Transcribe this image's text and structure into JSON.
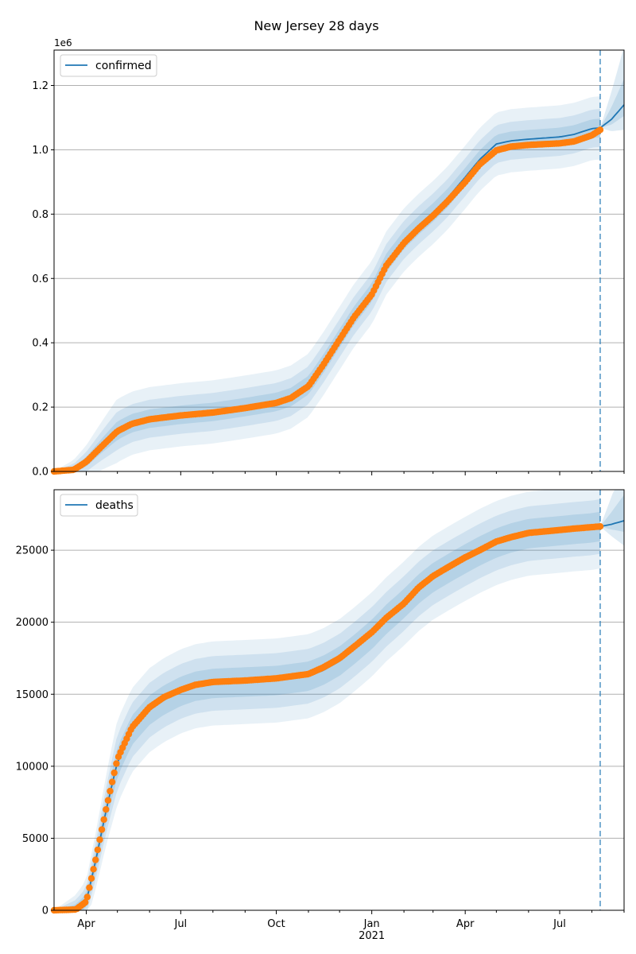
{
  "figure": {
    "title": "New Jersey 28 days",
    "colors": {
      "model": "#1f77b4",
      "observed": "#ff7f0e",
      "band": "#1f77b4",
      "grid": "#b0b0b0"
    }
  },
  "chart_data": [
    {
      "type": "line",
      "title": "",
      "xlabel": "",
      "ylabel": "",
      "offset_label": "1e6",
      "legend": {
        "entries": [
          "confirmed"
        ],
        "placement": "top-left"
      },
      "grid": "horizontal",
      "xlim": [
        "2020-03-01",
        "2021-09-01"
      ],
      "ylim": [
        0,
        1.31
      ],
      "y_ticks": [
        0.0,
        0.2,
        0.4,
        0.6,
        0.8,
        1.0,
        1.2
      ],
      "y_tick_labels": [
        "0.0",
        "0.2",
        "0.4",
        "0.6",
        "0.8",
        "1.0",
        "1.2"
      ],
      "forecast_start": "2021-08-09",
      "observed": {
        "x": [
          "2020-03-01",
          "2020-03-20",
          "2020-04-01",
          "2020-04-15",
          "2020-05-01",
          "2020-05-15",
          "2020-06-01",
          "2020-07-01",
          "2020-08-01",
          "2020-09-01",
          "2020-10-01",
          "2020-10-15",
          "2020-11-01",
          "2020-11-15",
          "2020-12-01",
          "2020-12-15",
          "2021-01-01",
          "2021-01-15",
          "2021-02-01",
          "2021-02-15",
          "2021-03-01",
          "2021-03-15",
          "2021-04-01",
          "2021-04-15",
          "2021-05-01",
          "2021-05-15",
          "2021-06-01",
          "2021-07-01",
          "2021-07-15",
          "2021-08-01",
          "2021-08-09"
        ],
        "y": [
          0.0,
          0.005,
          0.03,
          0.075,
          0.125,
          0.148,
          0.162,
          0.174,
          0.183,
          0.197,
          0.213,
          0.228,
          0.265,
          0.33,
          0.41,
          0.48,
          0.55,
          0.64,
          0.71,
          0.755,
          0.795,
          0.84,
          0.9,
          0.955,
          0.998,
          1.01,
          1.015,
          1.02,
          1.026,
          1.045,
          1.062
        ]
      },
      "model": {
        "x": [
          "2020-03-01",
          "2020-03-20",
          "2020-04-01",
          "2020-04-15",
          "2020-05-01",
          "2020-05-15",
          "2020-06-01",
          "2020-07-01",
          "2020-08-01",
          "2020-09-01",
          "2020-10-01",
          "2020-10-15",
          "2020-11-01",
          "2020-11-15",
          "2020-12-01",
          "2020-12-15",
          "2021-01-01",
          "2021-01-15",
          "2021-02-01",
          "2021-02-15",
          "2021-03-01",
          "2021-03-15",
          "2021-04-01",
          "2021-04-15",
          "2021-05-01",
          "2021-05-15",
          "2021-06-01",
          "2021-07-01",
          "2021-07-15",
          "2021-08-01",
          "2021-08-09",
          "2021-08-20",
          "2021-09-01"
        ],
        "y": [
          0.0,
          0.005,
          0.03,
          0.077,
          0.127,
          0.15,
          0.164,
          0.176,
          0.185,
          0.2,
          0.216,
          0.231,
          0.268,
          0.333,
          0.414,
          0.485,
          0.556,
          0.648,
          0.72,
          0.765,
          0.805,
          0.85,
          0.915,
          0.97,
          1.018,
          1.028,
          1.033,
          1.04,
          1.048,
          1.066,
          1.068,
          1.095,
          1.14
        ]
      }
    },
    {
      "type": "line",
      "title": "",
      "xlabel": "",
      "ylabel": "",
      "legend": {
        "entries": [
          "deaths"
        ],
        "placement": "top-left"
      },
      "grid": "horizontal",
      "xlim": [
        "2020-03-01",
        "2021-09-01"
      ],
      "ylim": [
        0,
        29200
      ],
      "y_ticks": [
        0,
        5000,
        10000,
        15000,
        20000,
        25000
      ],
      "y_tick_labels": [
        "0",
        "5000",
        "10000",
        "15000",
        "20000",
        "25000"
      ],
      "x_tick_labels": [
        "Apr",
        "Jul",
        "Oct",
        "Jan\n2021",
        "Apr",
        "Jul"
      ],
      "forecast_start": "2021-08-09",
      "observed": {
        "x": [
          "2020-03-01",
          "2020-03-22",
          "2020-04-01",
          "2020-04-10",
          "2020-04-20",
          "2020-05-01",
          "2020-05-15",
          "2020-06-01",
          "2020-06-15",
          "2020-07-01",
          "2020-07-15",
          "2020-08-01",
          "2020-09-01",
          "2020-10-01",
          "2020-11-01",
          "2020-11-15",
          "2020-12-01",
          "2020-12-15",
          "2021-01-01",
          "2021-01-15",
          "2021-02-01",
          "2021-02-15",
          "2021-03-01",
          "2021-03-15",
          "2021-04-01",
          "2021-04-15",
          "2021-05-01",
          "2021-05-15",
          "2021-06-01",
          "2021-07-01",
          "2021-07-15",
          "2021-08-01",
          "2021-08-09"
        ],
        "y": [
          0,
          50,
          600,
          3500,
          7000,
          10500,
          12700,
          14100,
          14800,
          15300,
          15650,
          15850,
          15950,
          16100,
          16400,
          16850,
          17500,
          18300,
          19300,
          20300,
          21300,
          22400,
          23200,
          23800,
          24500,
          25000,
          25600,
          25900,
          26200,
          26400,
          26500,
          26600,
          26650
        ]
      },
      "model": {
        "x": [
          "2020-03-01",
          "2020-03-22",
          "2020-04-01",
          "2020-04-10",
          "2020-04-20",
          "2020-05-01",
          "2020-05-15",
          "2020-06-01",
          "2020-06-15",
          "2020-07-01",
          "2020-07-15",
          "2020-08-01",
          "2020-09-01",
          "2020-10-01",
          "2020-11-01",
          "2020-11-15",
          "2020-12-01",
          "2020-12-15",
          "2021-01-01",
          "2021-01-15",
          "2021-02-01",
          "2021-02-15",
          "2021-03-01",
          "2021-03-15",
          "2021-04-01",
          "2021-04-15",
          "2021-05-01",
          "2021-05-15",
          "2021-06-01",
          "2021-07-01",
          "2021-07-15",
          "2021-08-01",
          "2021-08-09",
          "2021-08-20",
          "2021-09-01"
        ],
        "y": [
          0,
          50,
          600,
          3400,
          6900,
          10300,
          12500,
          13900,
          14600,
          15200,
          15550,
          15750,
          15850,
          15950,
          16250,
          16650,
          17300,
          18100,
          19150,
          20200,
          21300,
          22300,
          23100,
          23700,
          24400,
          24950,
          25500,
          25850,
          26150,
          26350,
          26450,
          26550,
          26650,
          26800,
          27050
        ]
      }
    }
  ]
}
